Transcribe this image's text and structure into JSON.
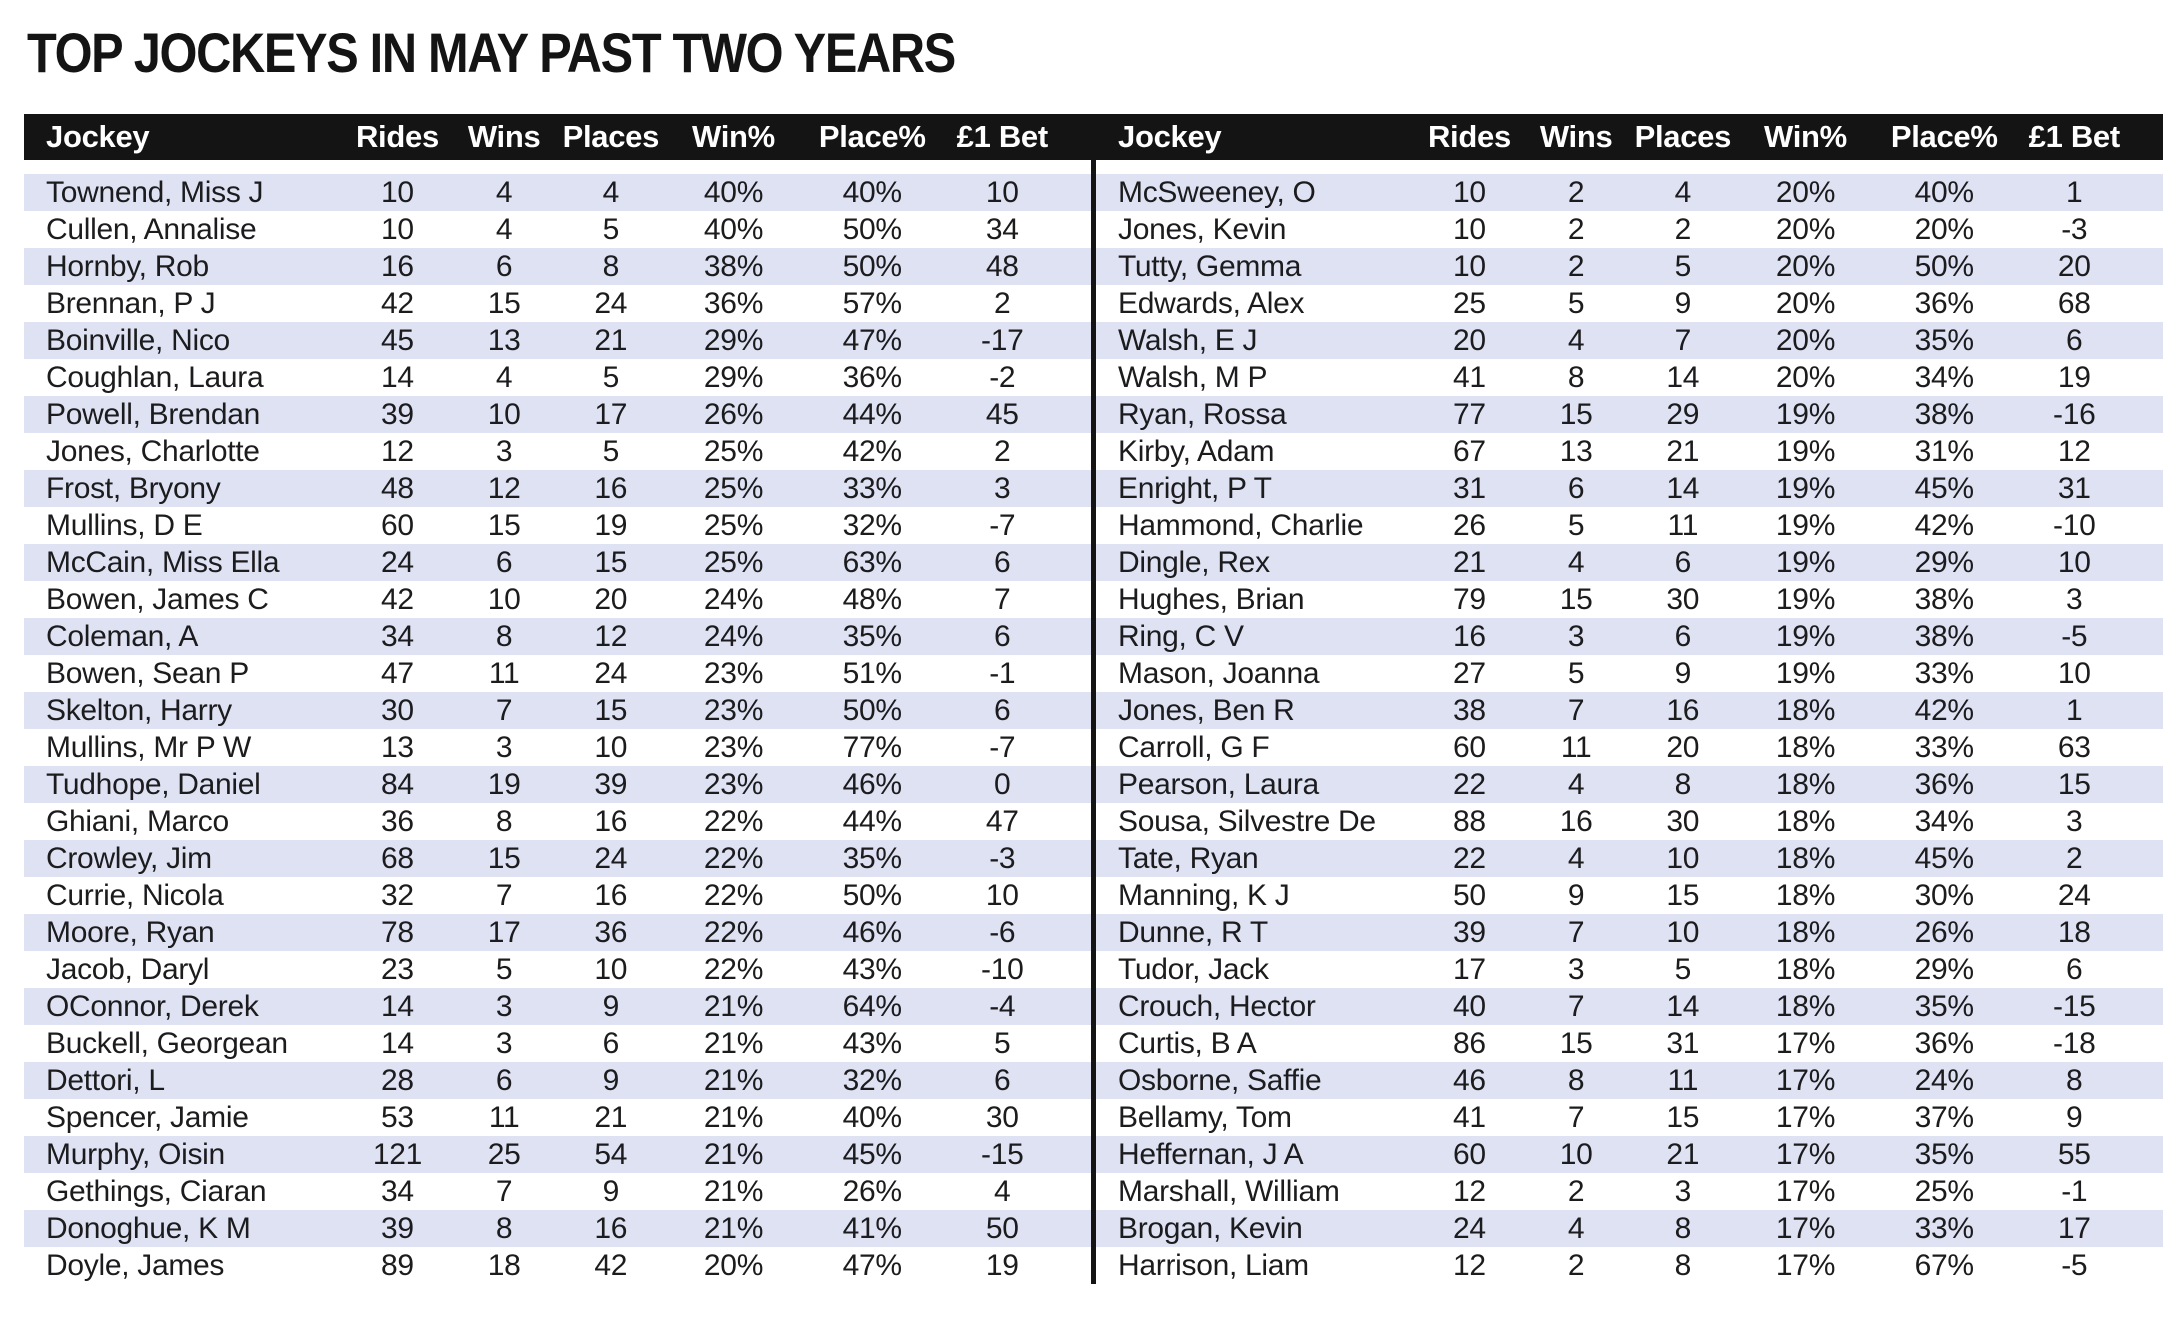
{
  "title": "TOP JOCKEYS IN MAY PAST TWO YEARS",
  "columns": [
    "Jockey",
    "Rides",
    "Wins",
    "Places",
    "Win%",
    "Place%",
    "£1 Bet"
  ],
  "colors": {
    "header_bg": "#141414",
    "header_text": "#ffffff",
    "row_stripe": "#dee2f3",
    "row_text": "#1c1c1e",
    "divider": "#141414"
  },
  "chart_data": {
    "type": "table",
    "title": "TOP JOCKEYS IN MAY PAST TWO YEARS",
    "columns": [
      "Jockey",
      "Rides",
      "Wins",
      "Places",
      "Win%",
      "Place%",
      "£1 Bet"
    ]
  },
  "tables": {
    "left": {
      "rows": [
        [
          "Townend, Miss J",
          "10",
          "4",
          "4",
          "40%",
          "40%",
          "10"
        ],
        [
          "Cullen, Annalise",
          "10",
          "4",
          "5",
          "40%",
          "50%",
          "34"
        ],
        [
          "Hornby, Rob",
          "16",
          "6",
          "8",
          "38%",
          "50%",
          "48"
        ],
        [
          "Brennan, P J",
          "42",
          "15",
          "24",
          "36%",
          "57%",
          "2"
        ],
        [
          "Boinville, Nico",
          "45",
          "13",
          "21",
          "29%",
          "47%",
          "-17"
        ],
        [
          "Coughlan, Laura",
          "14",
          "4",
          "5",
          "29%",
          "36%",
          "-2"
        ],
        [
          "Powell, Brendan",
          "39",
          "10",
          "17",
          "26%",
          "44%",
          "45"
        ],
        [
          "Jones, Charlotte",
          "12",
          "3",
          "5",
          "25%",
          "42%",
          "2"
        ],
        [
          "Frost, Bryony",
          "48",
          "12",
          "16",
          "25%",
          "33%",
          "3"
        ],
        [
          "Mullins, D E",
          "60",
          "15",
          "19",
          "25%",
          "32%",
          "-7"
        ],
        [
          "McCain, Miss Ella",
          "24",
          "6",
          "15",
          "25%",
          "63%",
          "6"
        ],
        [
          "Bowen, James C",
          "42",
          "10",
          "20",
          "24%",
          "48%",
          "7"
        ],
        [
          "Coleman, A",
          "34",
          "8",
          "12",
          "24%",
          "35%",
          "6"
        ],
        [
          "Bowen, Sean P",
          "47",
          "11",
          "24",
          "23%",
          "51%",
          "-1"
        ],
        [
          "Skelton, Harry",
          "30",
          "7",
          "15",
          "23%",
          "50%",
          "6"
        ],
        [
          "Mullins, Mr P W",
          "13",
          "3",
          "10",
          "23%",
          "77%",
          "-7"
        ],
        [
          "Tudhope, Daniel",
          "84",
          "19",
          "39",
          "23%",
          "46%",
          "0"
        ],
        [
          "Ghiani, Marco",
          "36",
          "8",
          "16",
          "22%",
          "44%",
          "47"
        ],
        [
          "Crowley, Jim",
          "68",
          "15",
          "24",
          "22%",
          "35%",
          "-3"
        ],
        [
          "Currie, Nicola",
          "32",
          "7",
          "16",
          "22%",
          "50%",
          "10"
        ],
        [
          "Moore, Ryan",
          "78",
          "17",
          "36",
          "22%",
          "46%",
          "-6"
        ],
        [
          "Jacob, Daryl",
          "23",
          "5",
          "10",
          "22%",
          "43%",
          "-10"
        ],
        [
          "OConnor, Derek",
          "14",
          "3",
          "9",
          "21%",
          "64%",
          "-4"
        ],
        [
          "Buckell, Georgean",
          "14",
          "3",
          "6",
          "21%",
          "43%",
          "5"
        ],
        [
          "Dettori, L",
          "28",
          "6",
          "9",
          "21%",
          "32%",
          "6"
        ],
        [
          "Spencer, Jamie",
          "53",
          "11",
          "21",
          "21%",
          "40%",
          "30"
        ],
        [
          "Murphy, Oisin",
          "121",
          "25",
          "54",
          "21%",
          "45%",
          "-15"
        ],
        [
          "Gethings, Ciaran",
          "34",
          "7",
          "9",
          "21%",
          "26%",
          "4"
        ],
        [
          "Donoghue, K M",
          "39",
          "8",
          "16",
          "21%",
          "41%",
          "50"
        ],
        [
          "Doyle, James",
          "89",
          "18",
          "42",
          "20%",
          "47%",
          "19"
        ]
      ]
    },
    "right": {
      "rows": [
        [
          "McSweeney, O",
          "10",
          "2",
          "4",
          "20%",
          "40%",
          "1"
        ],
        [
          "Jones, Kevin",
          "10",
          "2",
          "2",
          "20%",
          "20%",
          "-3"
        ],
        [
          "Tutty, Gemma",
          "10",
          "2",
          "5",
          "20%",
          "50%",
          "20"
        ],
        [
          "Edwards, Alex",
          "25",
          "5",
          "9",
          "20%",
          "36%",
          "68"
        ],
        [
          "Walsh, E J",
          "20",
          "4",
          "7",
          "20%",
          "35%",
          "6"
        ],
        [
          "Walsh, M P",
          "41",
          "8",
          "14",
          "20%",
          "34%",
          "19"
        ],
        [
          "Ryan, Rossa",
          "77",
          "15",
          "29",
          "19%",
          "38%",
          "-16"
        ],
        [
          "Kirby, Adam",
          "67",
          "13",
          "21",
          "19%",
          "31%",
          "12"
        ],
        [
          "Enright, P T",
          "31",
          "6",
          "14",
          "19%",
          "45%",
          "31"
        ],
        [
          "Hammond, Charlie",
          "26",
          "5",
          "11",
          "19%",
          "42%",
          "-10"
        ],
        [
          "Dingle, Rex",
          "21",
          "4",
          "6",
          "19%",
          "29%",
          "10"
        ],
        [
          "Hughes, Brian",
          "79",
          "15",
          "30",
          "19%",
          "38%",
          "3"
        ],
        [
          "Ring, C V",
          "16",
          "3",
          "6",
          "19%",
          "38%",
          "-5"
        ],
        [
          "Mason, Joanna",
          "27",
          "5",
          "9",
          "19%",
          "33%",
          "10"
        ],
        [
          "Jones, Ben R",
          "38",
          "7",
          "16",
          "18%",
          "42%",
          "1"
        ],
        [
          "Carroll, G F",
          "60",
          "11",
          "20",
          "18%",
          "33%",
          "63"
        ],
        [
          "Pearson, Laura",
          "22",
          "4",
          "8",
          "18%",
          "36%",
          "15"
        ],
        [
          "Sousa, Silvestre De",
          "88",
          "16",
          "30",
          "18%",
          "34%",
          "3"
        ],
        [
          "Tate, Ryan",
          "22",
          "4",
          "10",
          "18%",
          "45%",
          "2"
        ],
        [
          "Manning, K J",
          "50",
          "9",
          "15",
          "18%",
          "30%",
          "24"
        ],
        [
          "Dunne, R T",
          "39",
          "7",
          "10",
          "18%",
          "26%",
          "18"
        ],
        [
          "Tudor, Jack",
          "17",
          "3",
          "5",
          "18%",
          "29%",
          "6"
        ],
        [
          "Crouch, Hector",
          "40",
          "7",
          "14",
          "18%",
          "35%",
          "-15"
        ],
        [
          "Curtis, B A",
          "86",
          "15",
          "31",
          "17%",
          "36%",
          "-18"
        ],
        [
          "Osborne, Saffie",
          "46",
          "8",
          "11",
          "17%",
          "24%",
          "8"
        ],
        [
          "Bellamy, Tom",
          "41",
          "7",
          "15",
          "17%",
          "37%",
          "9"
        ],
        [
          "Heffernan, J A",
          "60",
          "10",
          "21",
          "17%",
          "35%",
          "55"
        ],
        [
          "Marshall, William",
          "12",
          "2",
          "3",
          "17%",
          "25%",
          "-1"
        ],
        [
          "Brogan, Kevin",
          "24",
          "4",
          "8",
          "17%",
          "33%",
          "17"
        ],
        [
          "Harrison, Liam",
          "12",
          "2",
          "8",
          "17%",
          "67%",
          "-5"
        ]
      ]
    }
  }
}
